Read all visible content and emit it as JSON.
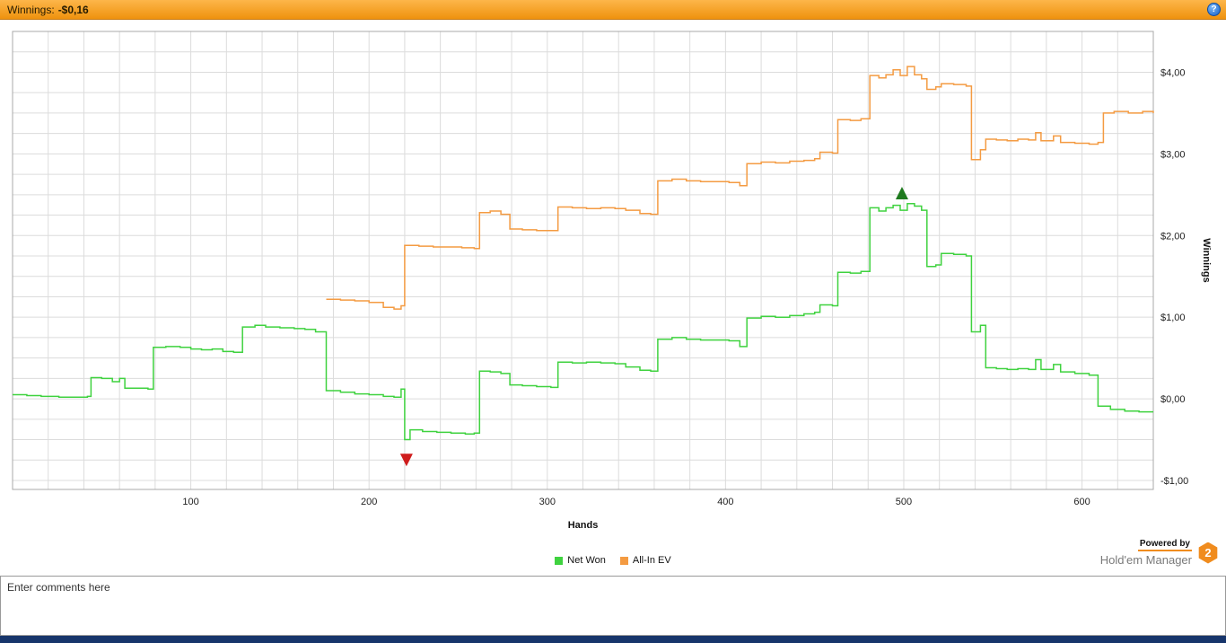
{
  "title_bar": {
    "label": "Winnings:",
    "value": "-$0,16",
    "help_icon": "?"
  },
  "chart_data": {
    "type": "line",
    "title": "",
    "xlabel": "Hands",
    "ylabel": "Winnings",
    "xlim": [
      0,
      640
    ],
    "ylim": [
      -1.11,
      4.5
    ],
    "grid": {
      "x_step": 20,
      "y_step": 0.25,
      "y_start": -1.0,
      "color": "#dcdcdc",
      "border_color": "#a8a8a8"
    },
    "x_ticks": [
      {
        "value": 100,
        "label": "100"
      },
      {
        "value": 200,
        "label": "200"
      },
      {
        "value": 300,
        "label": "300"
      },
      {
        "value": 400,
        "label": "400"
      },
      {
        "value": 500,
        "label": "500"
      },
      {
        "value": 600,
        "label": "600"
      }
    ],
    "y_ticks": [
      {
        "value": -1,
        "label": "-$1,00"
      },
      {
        "value": 0,
        "label": "$0,00"
      },
      {
        "value": 1,
        "label": "$1,00"
      },
      {
        "value": 2,
        "label": "$2,00"
      },
      {
        "value": 3,
        "label": "$3,00"
      },
      {
        "value": 4,
        "label": "$4,00"
      }
    ],
    "series": [
      {
        "name": "Net Won",
        "color": "#3fd23f",
        "points": [
          [
            0,
            0.05
          ],
          [
            8,
            0.04
          ],
          [
            16,
            0.03
          ],
          [
            26,
            0.02
          ],
          [
            36,
            0.02
          ],
          [
            42,
            0.03
          ],
          [
            44,
            0.26
          ],
          [
            50,
            0.25
          ],
          [
            56,
            0.21
          ],
          [
            60,
            0.25
          ],
          [
            63,
            0.13
          ],
          [
            70,
            0.13
          ],
          [
            76,
            0.12
          ],
          [
            79,
            0.63
          ],
          [
            86,
            0.64
          ],
          [
            94,
            0.63
          ],
          [
            100,
            0.61
          ],
          [
            106,
            0.6
          ],
          [
            112,
            0.61
          ],
          [
            118,
            0.58
          ],
          [
            124,
            0.57
          ],
          [
            129,
            0.88
          ],
          [
            136,
            0.9
          ],
          [
            142,
            0.88
          ],
          [
            150,
            0.87
          ],
          [
            158,
            0.86
          ],
          [
            164,
            0.85
          ],
          [
            170,
            0.82
          ],
          [
            176,
            0.1
          ],
          [
            184,
            0.08
          ],
          [
            192,
            0.06
          ],
          [
            200,
            0.05
          ],
          [
            208,
            0.03
          ],
          [
            214,
            0.02
          ],
          [
            218,
            0.12
          ],
          [
            220,
            -0.5
          ],
          [
            223,
            -0.38
          ],
          [
            230,
            -0.4
          ],
          [
            238,
            -0.41
          ],
          [
            246,
            -0.42
          ],
          [
            254,
            -0.43
          ],
          [
            259,
            -0.42
          ],
          [
            262,
            0.34
          ],
          [
            268,
            0.33
          ],
          [
            274,
            0.31
          ],
          [
            279,
            0.17
          ],
          [
            286,
            0.16
          ],
          [
            294,
            0.15
          ],
          [
            302,
            0.14
          ],
          [
            306,
            0.45
          ],
          [
            314,
            0.44
          ],
          [
            322,
            0.45
          ],
          [
            330,
            0.44
          ],
          [
            338,
            0.43
          ],
          [
            344,
            0.39
          ],
          [
            352,
            0.35
          ],
          [
            358,
            0.34
          ],
          [
            362,
            0.73
          ],
          [
            370,
            0.75
          ],
          [
            378,
            0.73
          ],
          [
            386,
            0.72
          ],
          [
            394,
            0.72
          ],
          [
            402,
            0.71
          ],
          [
            408,
            0.64
          ],
          [
            412,
            0.99
          ],
          [
            420,
            1.01
          ],
          [
            428,
            1.0
          ],
          [
            436,
            1.02
          ],
          [
            444,
            1.04
          ],
          [
            450,
            1.06
          ],
          [
            453,
            1.15
          ],
          [
            460,
            1.14
          ],
          [
            463,
            1.55
          ],
          [
            470,
            1.54
          ],
          [
            476,
            1.56
          ],
          [
            481,
            2.34
          ],
          [
            486,
            2.3
          ],
          [
            490,
            2.34
          ],
          [
            494,
            2.37
          ],
          [
            498,
            2.31
          ],
          [
            502,
            2.39
          ],
          [
            506,
            2.36
          ],
          [
            510,
            2.31
          ],
          [
            513,
            1.62
          ],
          [
            518,
            1.64
          ],
          [
            521,
            1.78
          ],
          [
            528,
            1.77
          ],
          [
            535,
            1.75
          ],
          [
            538,
            0.82
          ],
          [
            543,
            0.9
          ],
          [
            546,
            0.38
          ],
          [
            552,
            0.37
          ],
          [
            558,
            0.36
          ],
          [
            564,
            0.37
          ],
          [
            570,
            0.36
          ],
          [
            574,
            0.48
          ],
          [
            577,
            0.36
          ],
          [
            584,
            0.42
          ],
          [
            588,
            0.33
          ],
          [
            596,
            0.31
          ],
          [
            604,
            0.29
          ],
          [
            609,
            -0.09
          ],
          [
            616,
            -0.13
          ],
          [
            624,
            -0.15
          ],
          [
            632,
            -0.16
          ],
          [
            640,
            -0.16
          ]
        ]
      },
      {
        "name": "All-In EV",
        "color": "#f49b42",
        "points": [
          [
            176,
            1.22
          ],
          [
            184,
            1.21
          ],
          [
            192,
            1.2
          ],
          [
            200,
            1.18
          ],
          [
            208,
            1.12
          ],
          [
            214,
            1.1
          ],
          [
            218,
            1.14
          ],
          [
            220,
            1.88
          ],
          [
            228,
            1.87
          ],
          [
            236,
            1.86
          ],
          [
            244,
            1.86
          ],
          [
            252,
            1.85
          ],
          [
            259,
            1.84
          ],
          [
            262,
            2.28
          ],
          [
            268,
            2.3
          ],
          [
            274,
            2.26
          ],
          [
            279,
            2.08
          ],
          [
            286,
            2.07
          ],
          [
            294,
            2.06
          ],
          [
            302,
            2.06
          ],
          [
            306,
            2.35
          ],
          [
            314,
            2.34
          ],
          [
            322,
            2.33
          ],
          [
            330,
            2.34
          ],
          [
            338,
            2.33
          ],
          [
            344,
            2.31
          ],
          [
            352,
            2.27
          ],
          [
            358,
            2.26
          ],
          [
            362,
            2.67
          ],
          [
            370,
            2.69
          ],
          [
            378,
            2.67
          ],
          [
            386,
            2.66
          ],
          [
            394,
            2.66
          ],
          [
            402,
            2.65
          ],
          [
            408,
            2.61
          ],
          [
            412,
            2.88
          ],
          [
            420,
            2.9
          ],
          [
            428,
            2.89
          ],
          [
            436,
            2.91
          ],
          [
            444,
            2.92
          ],
          [
            450,
            2.94
          ],
          [
            453,
            3.02
          ],
          [
            460,
            3.01
          ],
          [
            463,
            3.42
          ],
          [
            470,
            3.41
          ],
          [
            476,
            3.43
          ],
          [
            481,
            3.96
          ],
          [
            486,
            3.93
          ],
          [
            490,
            3.97
          ],
          [
            494,
            4.03
          ],
          [
            498,
            3.96
          ],
          [
            502,
            4.07
          ],
          [
            506,
            3.97
          ],
          [
            510,
            3.92
          ],
          [
            513,
            3.79
          ],
          [
            518,
            3.82
          ],
          [
            521,
            3.86
          ],
          [
            528,
            3.85
          ],
          [
            535,
            3.83
          ],
          [
            538,
            2.93
          ],
          [
            543,
            3.05
          ],
          [
            546,
            3.18
          ],
          [
            552,
            3.17
          ],
          [
            558,
            3.16
          ],
          [
            564,
            3.18
          ],
          [
            570,
            3.17
          ],
          [
            574,
            3.26
          ],
          [
            577,
            3.16
          ],
          [
            584,
            3.22
          ],
          [
            588,
            3.14
          ],
          [
            596,
            3.13
          ],
          [
            604,
            3.12
          ],
          [
            609,
            3.14
          ],
          [
            612,
            3.5
          ],
          [
            618,
            3.52
          ],
          [
            626,
            3.5
          ],
          [
            634,
            3.52
          ],
          [
            640,
            3.5
          ]
        ]
      }
    ],
    "markers": [
      {
        "shape": "triangle-down",
        "color": "#cf1d1d",
        "x": 221,
        "y": -0.75
      },
      {
        "shape": "triangle-up",
        "color": "#1e7a1e",
        "x": 499,
        "y": 2.52
      }
    ],
    "legend": [
      {
        "label": "Net Won",
        "color": "#3fd23f"
      },
      {
        "label": "All-In EV",
        "color": "#f49b42"
      }
    ],
    "legend_position": "bottom-center"
  },
  "footer": {
    "powered_by": "Powered by",
    "brand": "Hold'em Manager",
    "brand_badge": "2"
  },
  "comments": {
    "placeholder": "Enter comments here"
  }
}
